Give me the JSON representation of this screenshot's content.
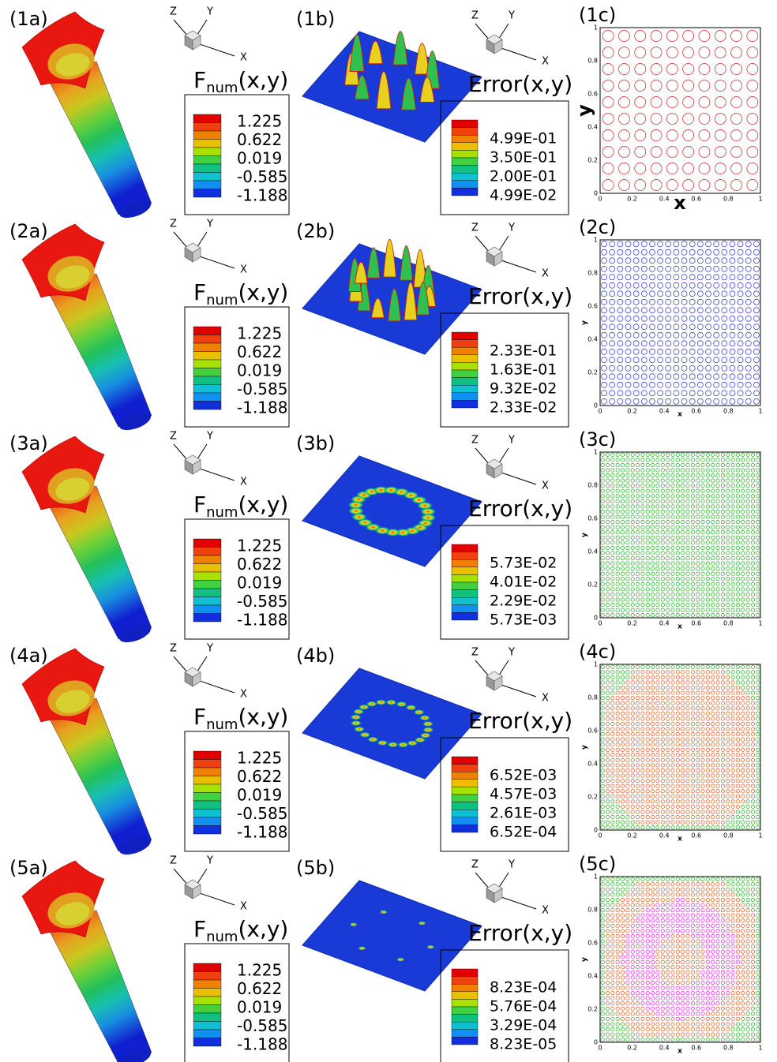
{
  "figure": {
    "triad": {
      "x": "X",
      "y": "Y",
      "z": "Z"
    },
    "f_title": {
      "main": "F",
      "sub": "num",
      "args": "(x,y)"
    },
    "f_values": [
      "1.225",
      "0.622",
      "0.019",
      "-0.585",
      "-1.188"
    ],
    "error_title": "Error(x,y)",
    "c_axis": {
      "ticks": [
        "0",
        "0.2",
        "0.4",
        "0.6",
        "0.8",
        "1"
      ],
      "x_label": "x",
      "y_label": "y"
    },
    "rows": [
      {
        "a_label": "(1a)",
        "b_label": "(1b)",
        "c_label": "(1c)",
        "error_values": [
          "4.99E-01",
          "3.50E-01",
          "2.00E-01",
          "4.99E-02"
        ]
      },
      {
        "a_label": "(2a)",
        "b_label": "(2b)",
        "c_label": "(2c)",
        "error_values": [
          "2.33E-01",
          "1.63E-01",
          "9.32E-02",
          "2.33E-02"
        ]
      },
      {
        "a_label": "(3a)",
        "b_label": "(3b)",
        "c_label": "(3c)",
        "error_values": [
          "5.73E-02",
          "4.01E-02",
          "2.29E-02",
          "5.73E-03"
        ]
      },
      {
        "a_label": "(4a)",
        "b_label": "(4b)",
        "c_label": "(4c)",
        "error_values": [
          "6.52E-03",
          "4.57E-03",
          "2.61E-03",
          "6.52E-04"
        ]
      },
      {
        "a_label": "(5a)",
        "b_label": "(5b)",
        "c_label": "(5c)",
        "error_values": [
          "8.23E-04",
          "5.76E-04",
          "3.29E-04",
          "8.23E-05"
        ]
      }
    ]
  }
}
